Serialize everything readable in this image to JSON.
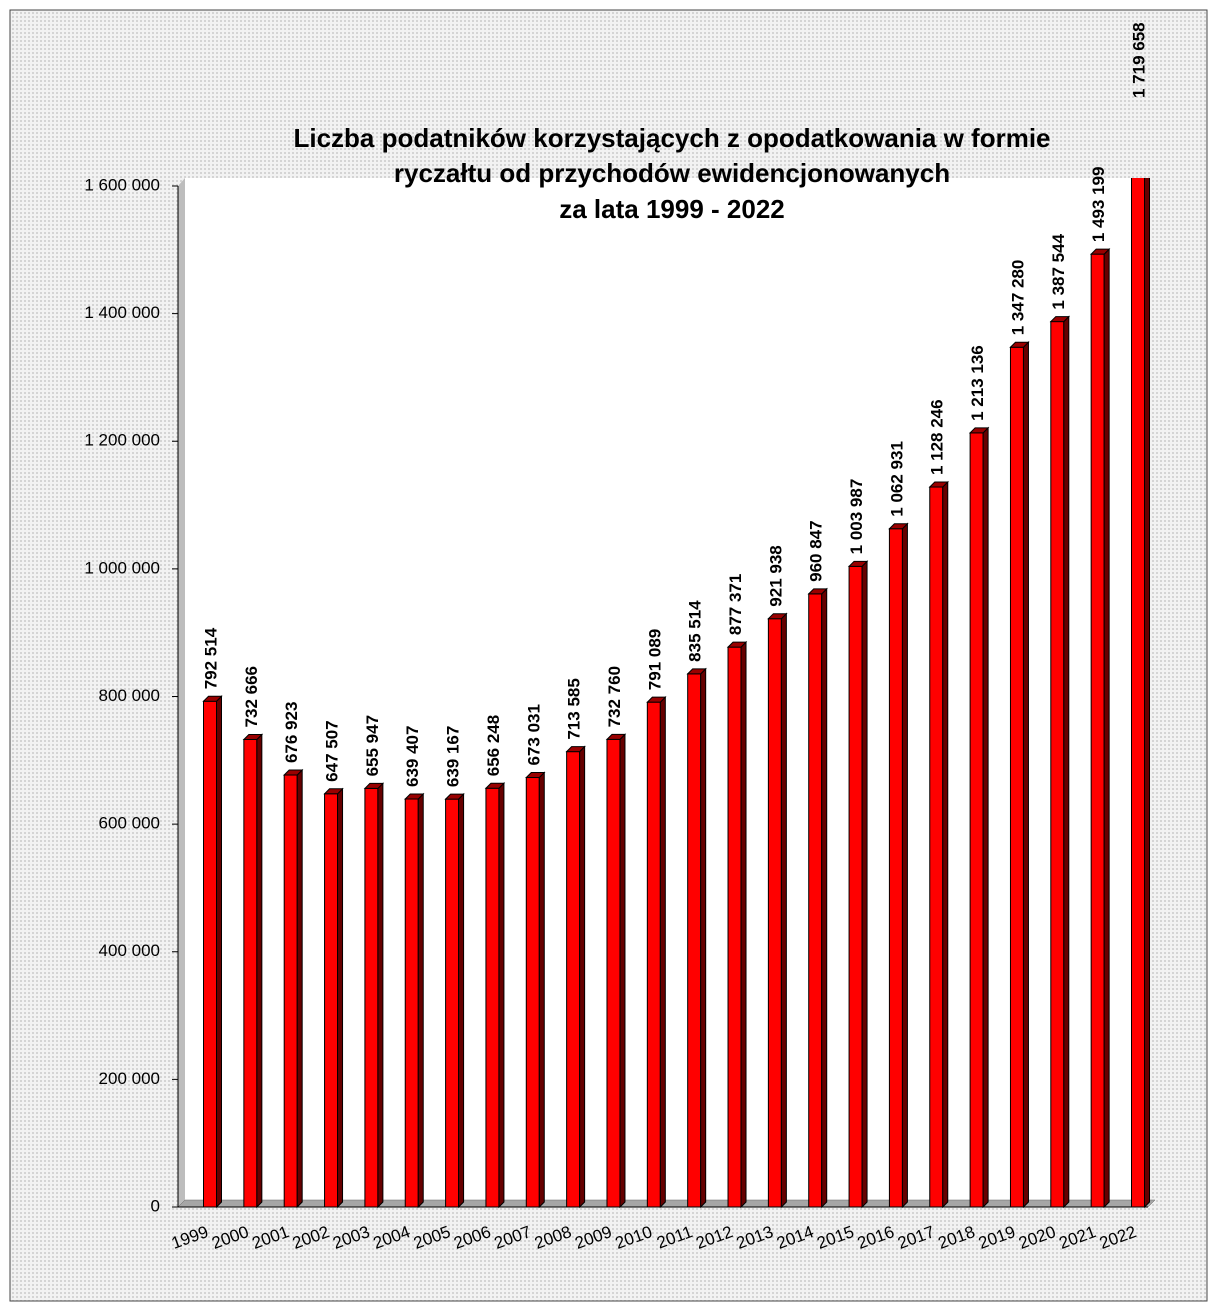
{
  "chart_data": {
    "type": "bar",
    "title": [
      "Liczba podatników korzystających  z opodatkowania w formie",
      "ryczałtu od przychodów ewidencjonowanych",
      "za lata 1999 - 2022"
    ],
    "categories": [
      "1999",
      "2000",
      "2001",
      "2002",
      "2003",
      "2004",
      "2005",
      "2006",
      "2007",
      "2008",
      "2009",
      "2010",
      "2011",
      "2012",
      "2013",
      "2014",
      "2015",
      "2016",
      "2017",
      "2018",
      "2019",
      "2020",
      "2021",
      "2022"
    ],
    "values": [
      792514,
      732666,
      676923,
      647507,
      655947,
      639407,
      639167,
      656248,
      673031,
      713585,
      732760,
      791089,
      835514,
      877371,
      921938,
      960847,
      1003987,
      1062931,
      1128246,
      1213136,
      1347280,
      1387544,
      1493199,
      1719658
    ],
    "value_labels": [
      "792 514",
      "732 666",
      "676 923",
      "647 507",
      "655 947",
      "639 407",
      "639 167",
      "656 248",
      "673 031",
      "713 585",
      "732 760",
      "791 089",
      "835 514",
      "877 371",
      "921 938",
      "960 847",
      "1 003 987",
      "1 062 931",
      "1 128 246",
      "1 213 136",
      "1 347 280",
      "1 387 544",
      "1 493 199",
      "1 719 658"
    ],
    "color": "#ff0000",
    "ylim": [
      0,
      1600000
    ],
    "yticks": [
      0,
      {
        "value": 200000,
        "label": "200 000"
      },
      {
        "value": 400000,
        "label": "400 000"
      },
      {
        "value": 600000,
        "label": "600 000"
      },
      {
        "value": 800000,
        "label": "800 000"
      },
      {
        "value": 1000000,
        "label": "1 000 000"
      },
      {
        "value": 1200000,
        "label": "1 200 000"
      },
      {
        "value": 1400000,
        "label": "1 400 000"
      },
      {
        "value": 1600000,
        "label": "1 600 000"
      }
    ],
    "grid": false
  }
}
